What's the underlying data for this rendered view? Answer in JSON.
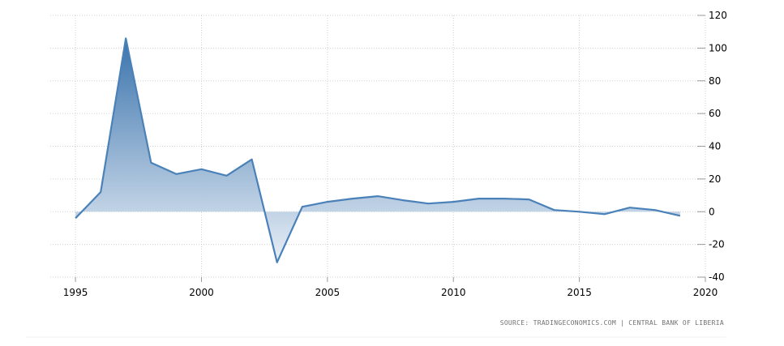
{
  "chart_data": {
    "type": "area",
    "title": "",
    "xlabel": "",
    "ylabel": "",
    "x": [
      1995,
      1996,
      1997,
      1998,
      1999,
      2000,
      2001,
      2002,
      2003,
      2004,
      2005,
      2006,
      2007,
      2008,
      2009,
      2010,
      2011,
      2012,
      2013,
      2014,
      2015,
      2016,
      2017,
      2018,
      2019
    ],
    "series": [
      {
        "values": [
          -4,
          12,
          106,
          30,
          23,
          26,
          22,
          32,
          -31,
          3,
          6,
          8,
          9.5,
          7,
          5,
          6,
          8,
          8,
          7.5,
          1,
          0,
          -1.5,
          2.5,
          1,
          -2.5
        ]
      }
    ],
    "xlim": [
      1994,
      2020
    ],
    "ylim": [
      -40,
      120
    ],
    "xticks": [
      1995,
      2000,
      2005,
      2010,
      2015,
      2020
    ],
    "yticks": [
      -40,
      -20,
      0,
      20,
      40,
      60,
      80,
      100,
      120
    ],
    "grid": true,
    "y_axis_side": "right",
    "legend": "none",
    "colors": {
      "line": "#4a81b8",
      "fill_top": "#2f6ca8",
      "fill_bottom": "#e8eef6",
      "grid": "#d0d0d0"
    }
  },
  "source": "SOURCE: TRADINGECONOMICS.COM | CENTRAL BANK OF LIBERIA"
}
